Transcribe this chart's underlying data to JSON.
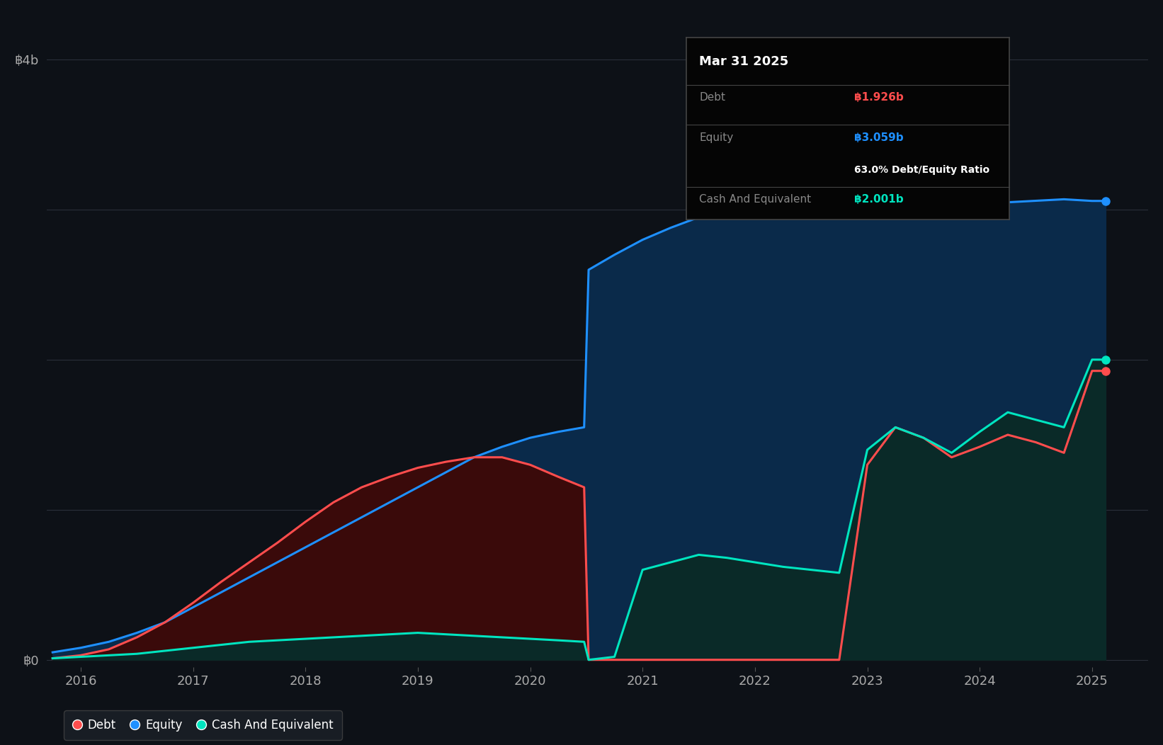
{
  "background_color": "#0d1117",
  "plot_bg_color": "#0d1117",
  "grid_color": "#2a2f3a",
  "ylim": [
    -50000000.0,
    4300000000.0
  ],
  "xlim": [
    2015.7,
    2025.5
  ],
  "xticks": [
    2016,
    2017,
    2018,
    2019,
    2020,
    2021,
    2022,
    2023,
    2024,
    2025
  ],
  "ytick_positions": [
    0,
    4000000000
  ],
  "ytick_labels": [
    "฿0",
    "฿4b"
  ],
  "equity_color": "#1e90ff",
  "equity_fill_color": "#0a2a4a",
  "debt_color": "#ff4d4d",
  "debt_fill_color": "#3a0a0a",
  "cash_color": "#00e5c0",
  "cash_fill_color": "#0a2a28",
  "legend_bg": "#1c2128",
  "tooltip_bg": "#050505",
  "tooltip_border": "#444444",
  "years": [
    2015.75,
    2016.0,
    2016.25,
    2016.5,
    2016.75,
    2017.0,
    2017.25,
    2017.5,
    2017.75,
    2018.0,
    2018.25,
    2018.5,
    2018.75,
    2019.0,
    2019.25,
    2019.5,
    2019.75,
    2020.0,
    2020.25,
    2020.48,
    2020.52,
    2020.75,
    2021.0,
    2021.25,
    2021.5,
    2021.75,
    2022.0,
    2022.25,
    2022.5,
    2022.75,
    2023.0,
    2023.25,
    2023.5,
    2023.75,
    2024.0,
    2024.25,
    2024.5,
    2024.75,
    2025.0,
    2025.12
  ],
  "equity": [
    50000000,
    80000000,
    120000000,
    180000000,
    250000000,
    350000000,
    450000000,
    550000000,
    650000000,
    750000000,
    850000000,
    950000000,
    1050000000,
    1150000000,
    1250000000,
    1350000000,
    1420000000,
    1480000000,
    1520000000,
    1550000000,
    2600000000,
    2700000000,
    2800000000,
    2880000000,
    2950000000,
    3000000000,
    3050000000,
    3050000000,
    3050000000,
    3050000000,
    3100000000,
    3120000000,
    3080000000,
    3050000000,
    3050000000,
    3050000000,
    3060000000,
    3070000000,
    3059000000,
    3059000000
  ],
  "debt": [
    10000000,
    30000000,
    70000000,
    150000000,
    250000000,
    380000000,
    520000000,
    650000000,
    780000000,
    920000000,
    1050000000,
    1150000000,
    1220000000,
    1280000000,
    1320000000,
    1350000000,
    1350000000,
    1300000000,
    1220000000,
    1150000000,
    0,
    0,
    0,
    0,
    0,
    0,
    0,
    0,
    0,
    0,
    1300000000,
    1550000000,
    1480000000,
    1350000000,
    1420000000,
    1500000000,
    1450000000,
    1380000000,
    1926000000,
    1926000000
  ],
  "cash": [
    10000000,
    20000000,
    30000000,
    40000000,
    60000000,
    80000000,
    100000000,
    120000000,
    130000000,
    140000000,
    150000000,
    160000000,
    170000000,
    180000000,
    170000000,
    160000000,
    150000000,
    140000000,
    130000000,
    120000000,
    0,
    20000000,
    600000000,
    650000000,
    700000000,
    680000000,
    650000000,
    620000000,
    600000000,
    580000000,
    1400000000,
    1550000000,
    1480000000,
    1380000000,
    1520000000,
    1650000000,
    1600000000,
    1550000000,
    2001000000,
    2001000000
  ],
  "tooltip_date": "Mar 31 2025",
  "tooltip_debt_label": "Debt",
  "tooltip_debt_val": "฿1.926b",
  "tooltip_equity_label": "Equity",
  "tooltip_equity_val": "฿3.059b",
  "tooltip_ratio": "63.0% Debt/Equity Ratio",
  "tooltip_cash_label": "Cash And Equivalent",
  "tooltip_cash_val": "฿2.001b",
  "legend_items": [
    {
      "label": "Debt",
      "color": "#ff4d4d"
    },
    {
      "label": "Equity",
      "color": "#1e90ff"
    },
    {
      "label": "Cash And Equivalent",
      "color": "#00e5c0"
    }
  ]
}
